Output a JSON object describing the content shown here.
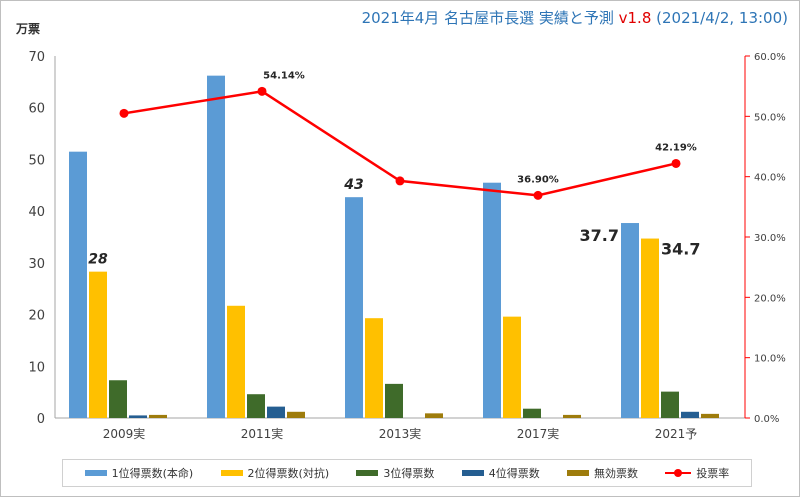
{
  "header": {
    "title_main": "2021年4月 名古屋市長選 実績と予測",
    "version": "v1.8",
    "timestamp": "(2021/4/2, 13:00)",
    "unit_label": "万票"
  },
  "colors": {
    "s1": "#5b9bd5",
    "s2": "#ffc000",
    "s3": "#3f6b2a",
    "s4": "#255e91",
    "s5": "#9e7c0c",
    "rate": "#ff0000",
    "axis_left": "#595959",
    "axis_right": "#ff0000"
  },
  "chart_data": {
    "type": "bar",
    "categories": [
      "2009実",
      "2011実",
      "2013実",
      "2017実",
      "2021予"
    ],
    "series": [
      {
        "name": "1位得票数(本命)",
        "values": [
          51.5,
          66.2,
          42.7,
          45.5,
          37.7
        ]
      },
      {
        "name": "2位得票数(対抗)",
        "values": [
          28.3,
          21.7,
          19.3,
          19.6,
          34.7
        ]
      },
      {
        "name": "3位得票数",
        "values": [
          7.3,
          4.6,
          6.6,
          1.8,
          5.1
        ]
      },
      {
        "name": "4位得票数",
        "values": [
          0.5,
          2.2,
          0.0,
          0.0,
          1.2
        ]
      },
      {
        "name": "無効票数",
        "values": [
          0.6,
          1.2,
          0.9,
          0.6,
          0.8
        ]
      }
    ],
    "line_series": {
      "name": "投票率",
      "values": [
        50.5,
        54.14,
        39.3,
        36.9,
        42.19
      ],
      "labels": [
        "",
        "54.14%",
        "",
        "36.90%",
        "42.19%"
      ]
    },
    "bar_annotations": [
      {
        "category_index": 0,
        "series_index": 1,
        "text": "28",
        "italic": true
      },
      {
        "category_index": 2,
        "series_index": 0,
        "text": "43",
        "italic": true
      },
      {
        "category_index": 4,
        "series_index": 0,
        "text": "37.7",
        "italic": false
      },
      {
        "category_index": 4,
        "series_index": 1,
        "text": "34.7",
        "italic": false
      }
    ],
    "ylim": [
      0,
      70
    ],
    "y_ticks": [
      "0",
      "10",
      "20",
      "30",
      "40",
      "50",
      "60",
      "70"
    ],
    "y2lim": [
      0,
      60
    ],
    "y2_ticks": [
      "0.0%",
      "10.0%",
      "20.0%",
      "30.0%",
      "40.0%",
      "50.0%",
      "60.0%"
    ],
    "grid": false,
    "legend_position": "bottom"
  }
}
